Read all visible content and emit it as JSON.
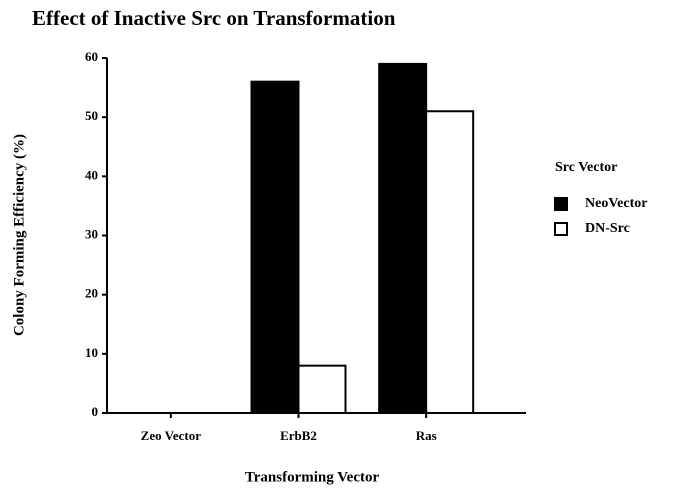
{
  "chart_data": {
    "type": "bar",
    "title": "Effect of Inactive Src on Transformation",
    "x_label": "Transforming Vector",
    "y_label": "Colony Forming Efficiency (%)",
    "legend_title": "Src Vector",
    "categories": [
      "Zeo Vector",
      "ErbB2",
      "Ras"
    ],
    "series": [
      {
        "name": "NeoVector",
        "color": "#000000",
        "values": [
          0,
          56,
          59
        ]
      },
      {
        "name": "DN-Src",
        "color": "#ffffff",
        "values": [
          0,
          8,
          51
        ]
      }
    ],
    "ylim": [
      0,
      60
    ],
    "yticks": [
      0,
      10,
      20,
      30,
      40,
      50,
      60
    ],
    "grid": false,
    "legend": "right"
  }
}
